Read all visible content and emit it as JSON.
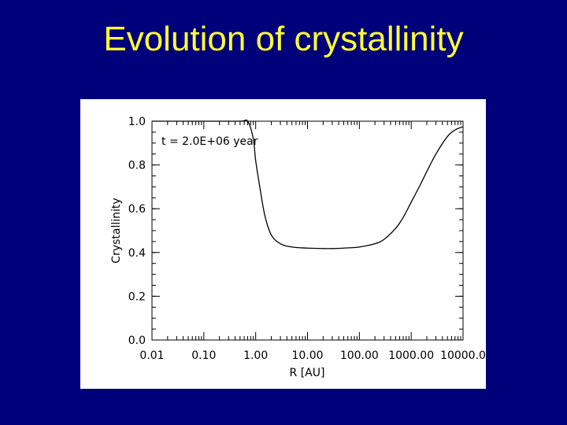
{
  "slide": {
    "title": "Evolution of crystallinity"
  },
  "colors": {
    "background": "#00007a",
    "title": "#ffff33",
    "plot_background": "#ffffff",
    "line": "#000000"
  },
  "chart_data": {
    "type": "line",
    "title": "",
    "xlabel": "R [AU]",
    "ylabel": "Crystallinity",
    "annotation": "t = 2.0E+06 year",
    "xscale": "log",
    "xlim": [
      0.01,
      10000.0
    ],
    "ylim": [
      0.0,
      1.0
    ],
    "x_tick_values": [
      0.01,
      0.1,
      1.0,
      10.0,
      100.0,
      1000.0,
      10000.0
    ],
    "x_tick_labels": [
      "0.01",
      "0.10",
      "1.00",
      "10.00",
      "100.00",
      "1000.00",
      "10000.0"
    ],
    "y_tick_values": [
      0.0,
      0.2,
      0.4,
      0.6,
      0.8,
      1.0
    ],
    "y_tick_labels": [
      "0.0",
      "0.2",
      "0.4",
      "0.6",
      "0.8",
      "1.0"
    ],
    "grid": false,
    "series": [
      {
        "x": [
          0.01,
          0.1,
          0.5,
          0.7,
          0.9,
          1.0,
          1.2,
          1.5,
          2.0,
          3.0,
          5.0,
          10.0,
          20.0,
          30.0,
          50.0,
          100.0,
          200.0,
          300.0,
          500.0,
          700.0,
          1000.0,
          1500.0,
          2000.0,
          3000.0,
          5000.0,
          7000.0,
          10000.0
        ],
        "y": [
          1.0,
          1.0,
          1.0,
          1.0,
          0.92,
          0.82,
          0.7,
          0.57,
          0.48,
          0.44,
          0.425,
          0.42,
          0.418,
          0.418,
          0.42,
          0.425,
          0.44,
          0.46,
          0.51,
          0.56,
          0.63,
          0.71,
          0.77,
          0.85,
          0.93,
          0.96,
          0.975
        ]
      }
    ]
  }
}
